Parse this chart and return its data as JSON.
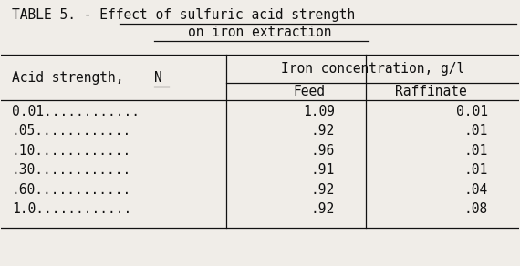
{
  "title_line1": "TABLE 5. - Effect of sulfuric acid strength",
  "title_line2": "on iron extraction",
  "col_header1": "Acid strength, N",
  "col_header2": "Iron concentration, g/l",
  "col_header2a": "Feed",
  "col_header2b": "Raffinate",
  "rows": [
    {
      "acid": "0.01............",
      "feed": "1.09",
      "raffinate": "0.01"
    },
    {
      "acid": ".05............",
      "feed": ".92",
      "raffinate": ".01"
    },
    {
      "acid": ".10............",
      "feed": ".96",
      "raffinate": ".01"
    },
    {
      "acid": ".30............",
      "feed": ".91",
      "raffinate": ".01"
    },
    {
      "acid": ".60............",
      "feed": ".92",
      "raffinate": ".04"
    },
    {
      "acid": "1.0............",
      "feed": ".92",
      "raffinate": ".08"
    }
  ],
  "bg_color": "#f0ede8",
  "text_color": "#111111",
  "font_family": "monospace",
  "font_size": 10.5,
  "title_font_size": 10.5
}
